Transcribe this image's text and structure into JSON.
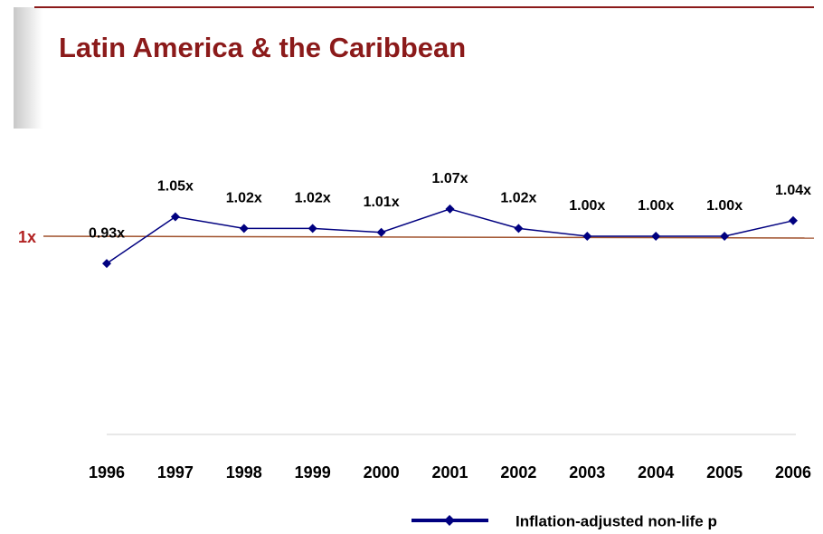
{
  "chart_data": {
    "type": "line",
    "title": "Latin America & the Caribbean",
    "categories": [
      "1996",
      "1997",
      "1998",
      "1999",
      "2000",
      "2001",
      "2002",
      "2003",
      "2004",
      "2005",
      "2006"
    ],
    "series": [
      {
        "name": "Inflation-adjusted non-life p",
        "color": "#000080",
        "values": [
          0.93,
          1.05,
          1.02,
          1.02,
          1.01,
          1.07,
          1.02,
          1.0,
          1.0,
          1.0,
          1.04
        ],
        "value_labels": [
          "0.93x",
          "1.05x",
          "1.02x",
          "1.02x",
          "1.01x",
          "1.07x",
          "1.02x",
          "1.00x",
          "1.00x",
          "1.00x",
          "1.04x"
        ]
      }
    ],
    "reference_line": {
      "value": 1,
      "label": "1x",
      "color": "#a0522d"
    },
    "ylim": [
      0.49,
      1.19
    ]
  }
}
